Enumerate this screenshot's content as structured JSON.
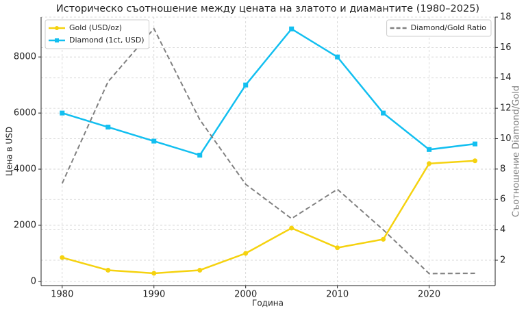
{
  "chart_data": {
    "type": "line",
    "title": "Историческо съотношение между цената на златото и диамантите (1980–2025)",
    "x_label": "Година",
    "y_label": "Цена в USD",
    "y2_label": "Съотношение Diamond/Gold",
    "x": [
      1980,
      1985,
      1990,
      1995,
      2000,
      2005,
      2010,
      2015,
      2020,
      2025
    ],
    "series": [
      {
        "name": "Gold (USD/oz)",
        "color": "#f5d20f",
        "marker": "circle",
        "values": [
          850,
          400,
          290,
          400,
          1000,
          1900,
          1200,
          1500,
          4200,
          4300
        ]
      },
      {
        "name": "Diamond (1ct, USD)",
        "color": "#12bff0",
        "marker": "square",
        "values": [
          6000,
          5500,
          5000,
          4500,
          7000,
          9000,
          8000,
          6000,
          4700,
          4900
        ]
      },
      {
        "name": "Diamond/Gold Ratio",
        "color": "#808080",
        "dashed": true,
        "axis": "y2",
        "values": [
          7.06,
          13.75,
          17.24,
          11.25,
          7,
          4.74,
          6.67,
          4,
          1.12,
          1.14
        ]
      }
    ],
    "xlim": [
      1977.7,
      2027.2
    ],
    "xticks": [
      1980,
      1990,
      2000,
      2010,
      2020
    ],
    "ylim": [
      -150,
      9420
    ],
    "yticks": [
      0,
      2000,
      4000,
      6000,
      8000
    ],
    "y2lim": [
      0.33,
      18
    ],
    "y2ticks": [
      2,
      4,
      6,
      8,
      10,
      12,
      14,
      16,
      18
    ],
    "grid": true
  }
}
